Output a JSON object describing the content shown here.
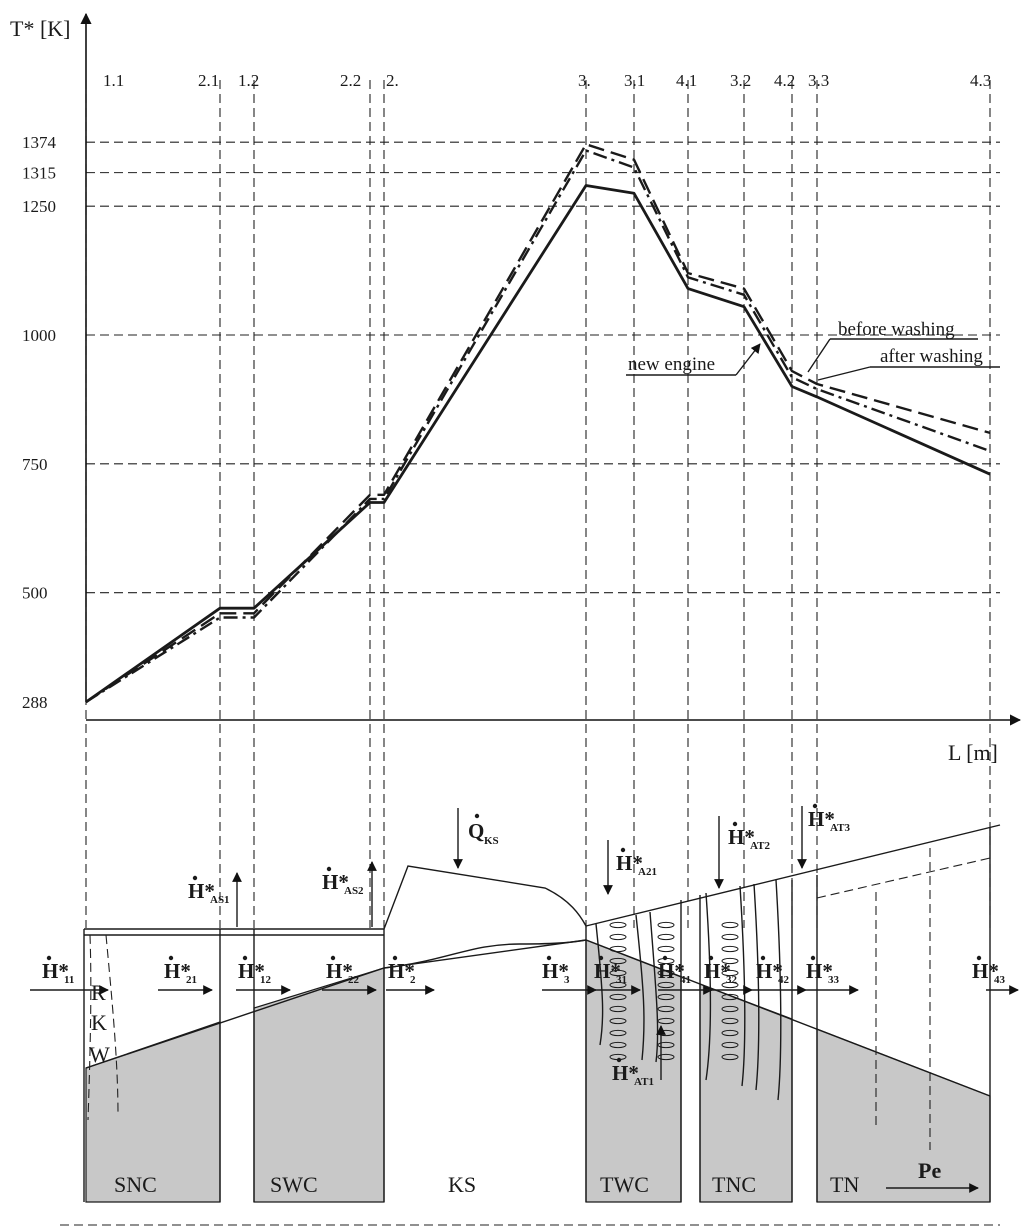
{
  "chart_data": {
    "type": "line",
    "xlabel": "L [m]",
    "ylabel": "T* [K]",
    "ylim": [
      288,
      1420
    ],
    "yticks": [
      288,
      500,
      750,
      1000,
      1250,
      1315,
      1374
    ],
    "stations": [
      "1.1",
      "2.1",
      "1.2",
      "2.2",
      "2.",
      "3.",
      "3.1",
      "4.1",
      "3.2",
      "4.2",
      "3.3",
      "4.3"
    ],
    "series": [
      {
        "name": "new engine",
        "style": "solid",
        "values": [
          288,
          470,
          470,
          675,
          675,
          1290,
          1275,
          1090,
          1055,
          900,
          880,
          730
        ]
      },
      {
        "name": "before washing",
        "style": "dashed",
        "values": [
          288,
          460,
          460,
          690,
          690,
          1370,
          1340,
          1120,
          1090,
          930,
          905,
          810
        ]
      },
      {
        "name": "after washing",
        "style": "dash-dot",
        "values": [
          288,
          452,
          452,
          682,
          682,
          1358,
          1325,
          1112,
          1078,
          918,
          895,
          775
        ]
      }
    ]
  },
  "legend": {
    "before_washing": "before washing",
    "after_washing": "after washing",
    "new_engine": "new engine"
  },
  "sections": [
    "SNC",
    "SWC",
    "KS",
    "TWC",
    "TNC",
    "TN"
  ],
  "rkw": [
    "R",
    "K",
    "W"
  ],
  "power_label": "Pe",
  "flows": {
    "h_main": "H*",
    "sub_11": "11",
    "sub_21": "21",
    "sub_12": "12",
    "sub_22": "22",
    "sub_2": "2",
    "sub_3": "3",
    "sub_31": "31",
    "sub_41": "41",
    "sub_32": "32",
    "sub_42": "42",
    "sub_33": "33",
    "sub_43": "43",
    "sub_as1": "AS1",
    "sub_as2": "AS2",
    "sub_a21": "A21",
    "sub_at2": "AT2",
    "sub_at3": "AT3",
    "sub_at1": "AT1",
    "q_main": "Q",
    "sub_ks": "KS"
  }
}
